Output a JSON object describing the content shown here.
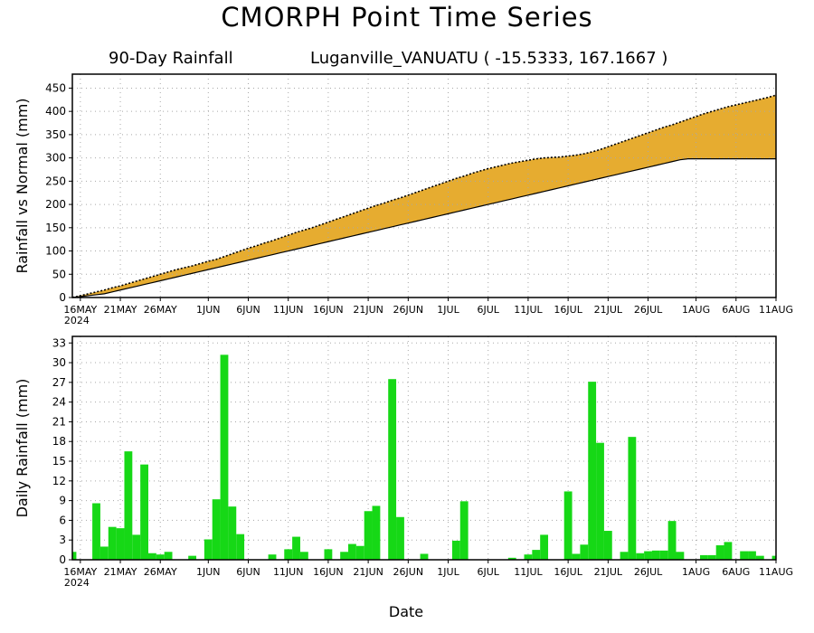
{
  "title": "CMORPH Point Time Series",
  "subtitle_left": "90-Day Rainfall",
  "subtitle_right": "Luganville_VANUATU ( -15.5333, 167.1667 )",
  "xaxis_title": "Date",
  "colors": {
    "accumulated_fill": "#e6ac30",
    "daily_bar": "#16d816",
    "grid": "#a8a8a8"
  },
  "chart_data": [
    {
      "type": "area",
      "ylabel": "Rainfall vs Normal (mm)",
      "ylim": [
        0,
        480
      ],
      "yticks": [
        0,
        50,
        100,
        150,
        200,
        250,
        300,
        350,
        400,
        450
      ],
      "xlim": [
        0,
        88
      ],
      "x_ticks": [
        {
          "day": 1,
          "label": "16MAY",
          "label2": "2024"
        },
        {
          "day": 6,
          "label": "21MAY"
        },
        {
          "day": 11,
          "label": "26MAY"
        },
        {
          "day": 17,
          "label": "1JUN"
        },
        {
          "day": 22,
          "label": "6JUN"
        },
        {
          "day": 27,
          "label": "11JUN"
        },
        {
          "day": 32,
          "label": "16JUN"
        },
        {
          "day": 37,
          "label": "21JUN"
        },
        {
          "day": 42,
          "label": "26JUN"
        },
        {
          "day": 47,
          "label": "1JUL"
        },
        {
          "day": 52,
          "label": "6JUL"
        },
        {
          "day": 57,
          "label": "11JUL"
        },
        {
          "day": 62,
          "label": "16JUL"
        },
        {
          "day": 67,
          "label": "21JUL"
        },
        {
          "day": 72,
          "label": "26JUL"
        },
        {
          "day": 78,
          "label": "1AUG"
        },
        {
          "day": 83,
          "label": "6AUG"
        },
        {
          "day": 88,
          "label": "11AUG"
        }
      ],
      "series": [
        {
          "values": [
            0,
            4,
            8,
            12,
            16,
            21,
            25,
            30,
            35,
            40,
            45,
            50,
            55,
            60,
            64,
            68,
            73,
            78,
            82,
            88,
            94,
            100,
            106,
            111,
            117,
            122,
            128,
            134,
            140,
            145,
            150,
            156,
            162,
            168,
            174,
            180,
            186,
            192,
            198,
            203,
            209,
            214,
            220,
            226,
            232,
            238,
            244,
            250,
            256,
            261,
            267,
            272,
            277,
            281,
            285,
            289,
            292,
            295,
            298,
            300,
            301,
            302,
            304,
            306,
            309,
            313,
            318,
            324,
            330,
            336,
            342,
            348,
            354,
            360,
            366,
            371,
            377,
            383,
            389,
            395,
            400,
            405,
            410,
            414,
            418,
            422,
            426,
            430,
            435
          ]
        },
        {
          "values": [
            0,
            2,
            4,
            6,
            8,
            12,
            16,
            20,
            24,
            28,
            32,
            36,
            40,
            44,
            48,
            52,
            56,
            60,
            64,
            68,
            72,
            76,
            80,
            84,
            88,
            92,
            96,
            100,
            104,
            108,
            112,
            116,
            120,
            124,
            128,
            132,
            136,
            140,
            144,
            148,
            152,
            156,
            160,
            164,
            168,
            172,
            176,
            180,
            184,
            188,
            192,
            196,
            200,
            204,
            208,
            212,
            216,
            220,
            224,
            228,
            232,
            236,
            240,
            244,
            248,
            252,
            256,
            260,
            264,
            268,
            272,
            276,
            280,
            284,
            288,
            292,
            296,
            298,
            298,
            298,
            298,
            298,
            298,
            298,
            298,
            298,
            298,
            298,
            298
          ]
        }
      ]
    },
    {
      "type": "bar",
      "ylabel": "Daily Rainfall (mm)",
      "ylim": [
        0,
        34
      ],
      "yticks": [
        0,
        3,
        6,
        9,
        12,
        15,
        18,
        21,
        24,
        27,
        30,
        33
      ],
      "xlim": [
        0,
        88
      ],
      "x_ticks": [
        {
          "day": 1,
          "label": "16MAY",
          "label2": "2024"
        },
        {
          "day": 6,
          "label": "21MAY"
        },
        {
          "day": 11,
          "label": "26MAY"
        },
        {
          "day": 17,
          "label": "1JUN"
        },
        {
          "day": 22,
          "label": "6JUN"
        },
        {
          "day": 27,
          "label": "11JUN"
        },
        {
          "day": 32,
          "label": "16JUN"
        },
        {
          "day": 37,
          "label": "21JUN"
        },
        {
          "day": 42,
          "label": "26JUN"
        },
        {
          "day": 47,
          "label": "1JUL"
        },
        {
          "day": 52,
          "label": "6JUL"
        },
        {
          "day": 57,
          "label": "11JUL"
        },
        {
          "day": 62,
          "label": "16JUL"
        },
        {
          "day": 67,
          "label": "21JUL"
        },
        {
          "day": 72,
          "label": "26JUL"
        },
        {
          "day": 78,
          "label": "1AUG"
        },
        {
          "day": 83,
          "label": "6AUG"
        },
        {
          "day": 88,
          "label": "11AUG"
        }
      ],
      "values": [
        1.2,
        0,
        0,
        8.6,
        2,
        5,
        4.8,
        16.5,
        3.8,
        14.5,
        1,
        0.8,
        1.2,
        0,
        0,
        0.6,
        0,
        3.1,
        9.2,
        31.2,
        8.1,
        3.9,
        0,
        0,
        0,
        0.8,
        0,
        1.6,
        3.5,
        1.2,
        0,
        0,
        1.6,
        0,
        1.2,
        2.4,
        2.1,
        7.4,
        8.2,
        0,
        27.5,
        6.5,
        0,
        0,
        0.9,
        0,
        0,
        0,
        2.9,
        8.9,
        0,
        0,
        0,
        0,
        0,
        0.3,
        0,
        0.8,
        1.5,
        3.8,
        0,
        0,
        10.4,
        0.9,
        2.3,
        27.1,
        17.8,
        4.4,
        0,
        1.2,
        18.7,
        1,
        1.3,
        1.4,
        1.4,
        5.9,
        1.2,
        0,
        0,
        0.7,
        0.7,
        2.2,
        2.7,
        0,
        1.3,
        1.3,
        0.6,
        0,
        0.6
      ]
    }
  ]
}
